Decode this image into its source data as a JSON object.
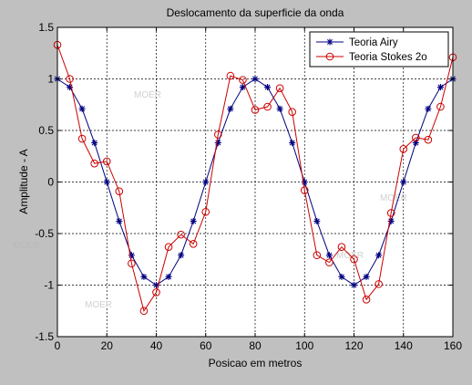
{
  "chart_data": {
    "type": "line",
    "title": "Deslocamento da superficie da onda",
    "xlabel": "Posicao em metros",
    "ylabel": "Amplitude - A",
    "xlim": [
      0,
      160
    ],
    "ylim": [
      -1.5,
      1.5
    ],
    "xticks": [
      0,
      20,
      40,
      60,
      80,
      100,
      120,
      140,
      160
    ],
    "yticks": [
      -1.5,
      -1,
      -0.5,
      0,
      0.5,
      1,
      1.5
    ],
    "xtick_labels": [
      "0",
      "20",
      "40",
      "60",
      "80",
      "100",
      "120",
      "140",
      "160"
    ],
    "ytick_labels": [
      "-1.5",
      "-1",
      "-0.5",
      "0",
      "0.5",
      "1",
      "1.5"
    ],
    "grid": true,
    "legend_position": "top-right",
    "x": [
      0,
      5,
      10,
      15,
      20,
      25,
      30,
      35,
      40,
      45,
      50,
      55,
      60,
      65,
      70,
      75,
      80,
      85,
      90,
      95,
      100,
      105,
      110,
      115,
      120,
      125,
      130,
      135,
      140,
      145,
      150,
      155,
      160
    ],
    "series": [
      {
        "name": "Teoria Airy",
        "color": "#000080",
        "marker": "star",
        "values": [
          1.0,
          0.92,
          0.71,
          0.38,
          0.0,
          -0.38,
          -0.71,
          -0.92,
          -1.0,
          -0.92,
          -0.71,
          -0.38,
          0.0,
          0.38,
          0.71,
          0.92,
          1.0,
          0.92,
          0.71,
          0.38,
          0.0,
          -0.38,
          -0.71,
          -0.92,
          -1.0,
          -0.92,
          -0.71,
          -0.38,
          0.0,
          0.38,
          0.71,
          0.92,
          1.0
        ]
      },
      {
        "name": "Teoria Stokes 2o",
        "color": "#cc0000",
        "marker": "circle",
        "values": [
          1.33,
          1.0,
          0.42,
          0.18,
          0.2,
          -0.09,
          -0.79,
          -1.25,
          -1.07,
          -0.63,
          -0.51,
          -0.6,
          -0.29,
          0.46,
          1.03,
          0.99,
          0.7,
          0.73,
          0.91,
          0.68,
          -0.08,
          -0.71,
          -0.78,
          -0.63,
          -0.75,
          -1.14,
          -0.99,
          -0.3,
          0.32,
          0.43,
          0.41,
          0.73,
          1.21
        ]
      }
    ]
  },
  "watermarks": [
    "MOER",
    "MOER",
    "MOER",
    "MOER",
    "MOER"
  ]
}
